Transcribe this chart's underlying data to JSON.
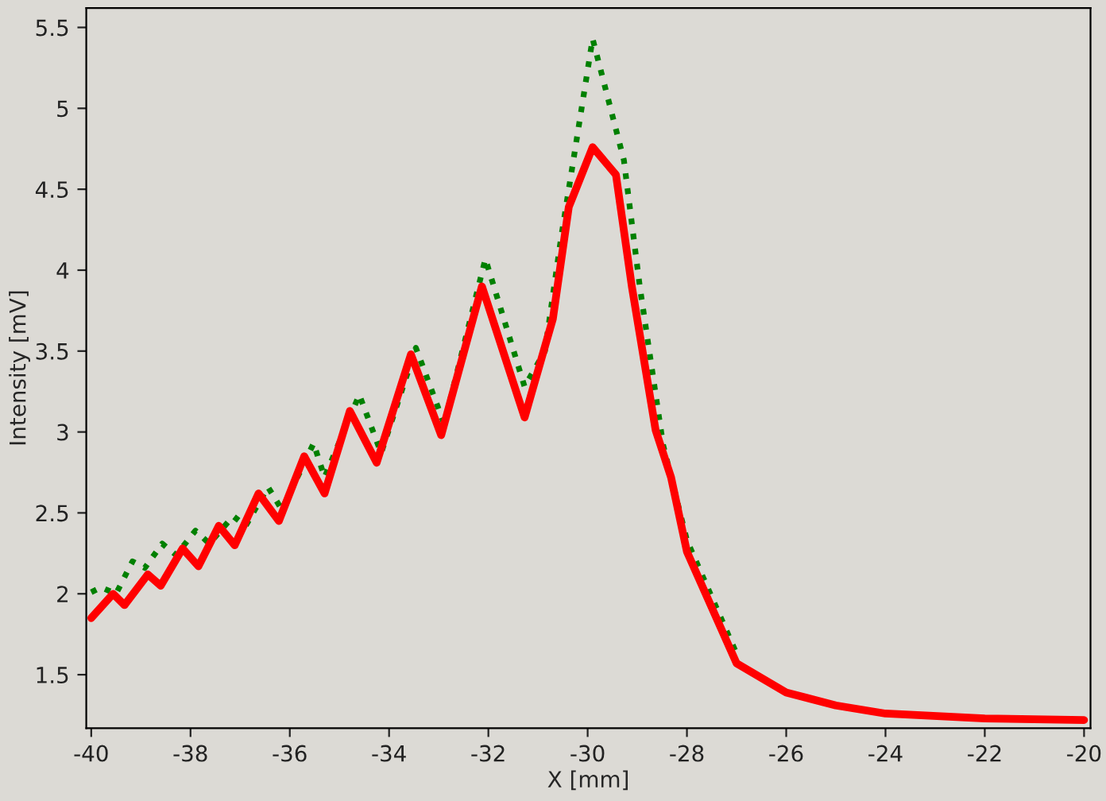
{
  "chart_data": {
    "type": "line",
    "xlabel": "X [mm]",
    "ylabel": "Intensity [mV]",
    "xlim": [
      -40.1,
      -19.87
    ],
    "ylim": [
      1.17,
      5.62
    ],
    "xticks": [
      -40,
      -38,
      -36,
      -34,
      -32,
      -30,
      -28,
      -26,
      -24,
      -22,
      -20
    ],
    "yticks": [
      1.5,
      2,
      2.5,
      3,
      3.5,
      4,
      4.5,
      5,
      5.5
    ],
    "grid": false,
    "legend": false,
    "marker": "none",
    "series": [
      {
        "color": "#008000",
        "line_style": "dotted",
        "x": [
          -40,
          -39.8,
          -39.5,
          -39.17,
          -38.92,
          -38.57,
          -38.29,
          -37.9,
          -37.62,
          -37.14,
          -36.89,
          -36.44,
          -36.16,
          -35.52,
          -35.3,
          -34.6,
          -34.16,
          -33.46,
          -32.89,
          -32.06,
          -31.27,
          -30.86,
          -30.54,
          -29.9,
          -29.27,
          -28.95,
          -28.48,
          -28.0,
          -27.0
        ],
        "values": [
          2.01,
          2.04,
          2.0,
          2.2,
          2.16,
          2.31,
          2.24,
          2.39,
          2.31,
          2.48,
          2.42,
          2.66,
          2.52,
          2.93,
          2.72,
          3.23,
          2.87,
          3.52,
          3.05,
          4.07,
          3.28,
          3.5,
          4.19,
          5.43,
          4.68,
          3.9,
          2.92,
          2.33,
          1.63
        ]
      },
      {
        "color": "#ff0000",
        "line_style": "solid",
        "x": [
          -40,
          -39.56,
          -39.33,
          -38.86,
          -38.6,
          -38.16,
          -37.84,
          -37.43,
          -37.11,
          -36.63,
          -36.22,
          -35.71,
          -35.3,
          -34.79,
          -34.25,
          -33.56,
          -32.95,
          -32.13,
          -31.27,
          -30.7,
          -30.38,
          -29.9,
          -29.43,
          -29.11,
          -28.63,
          -28.32,
          -28.0,
          -27.0,
          -26.0,
          -25.0,
          -24.0,
          -22.0,
          -20.0
        ],
        "values": [
          1.85,
          2.0,
          1.93,
          2.12,
          2.05,
          2.28,
          2.17,
          2.42,
          2.3,
          2.62,
          2.45,
          2.85,
          2.62,
          3.13,
          2.81,
          3.48,
          2.98,
          3.9,
          3.09,
          3.7,
          4.39,
          4.76,
          4.59,
          3.9,
          3.01,
          2.72,
          2.26,
          1.57,
          1.39,
          1.31,
          1.26,
          1.23,
          1.22
        ]
      }
    ]
  }
}
